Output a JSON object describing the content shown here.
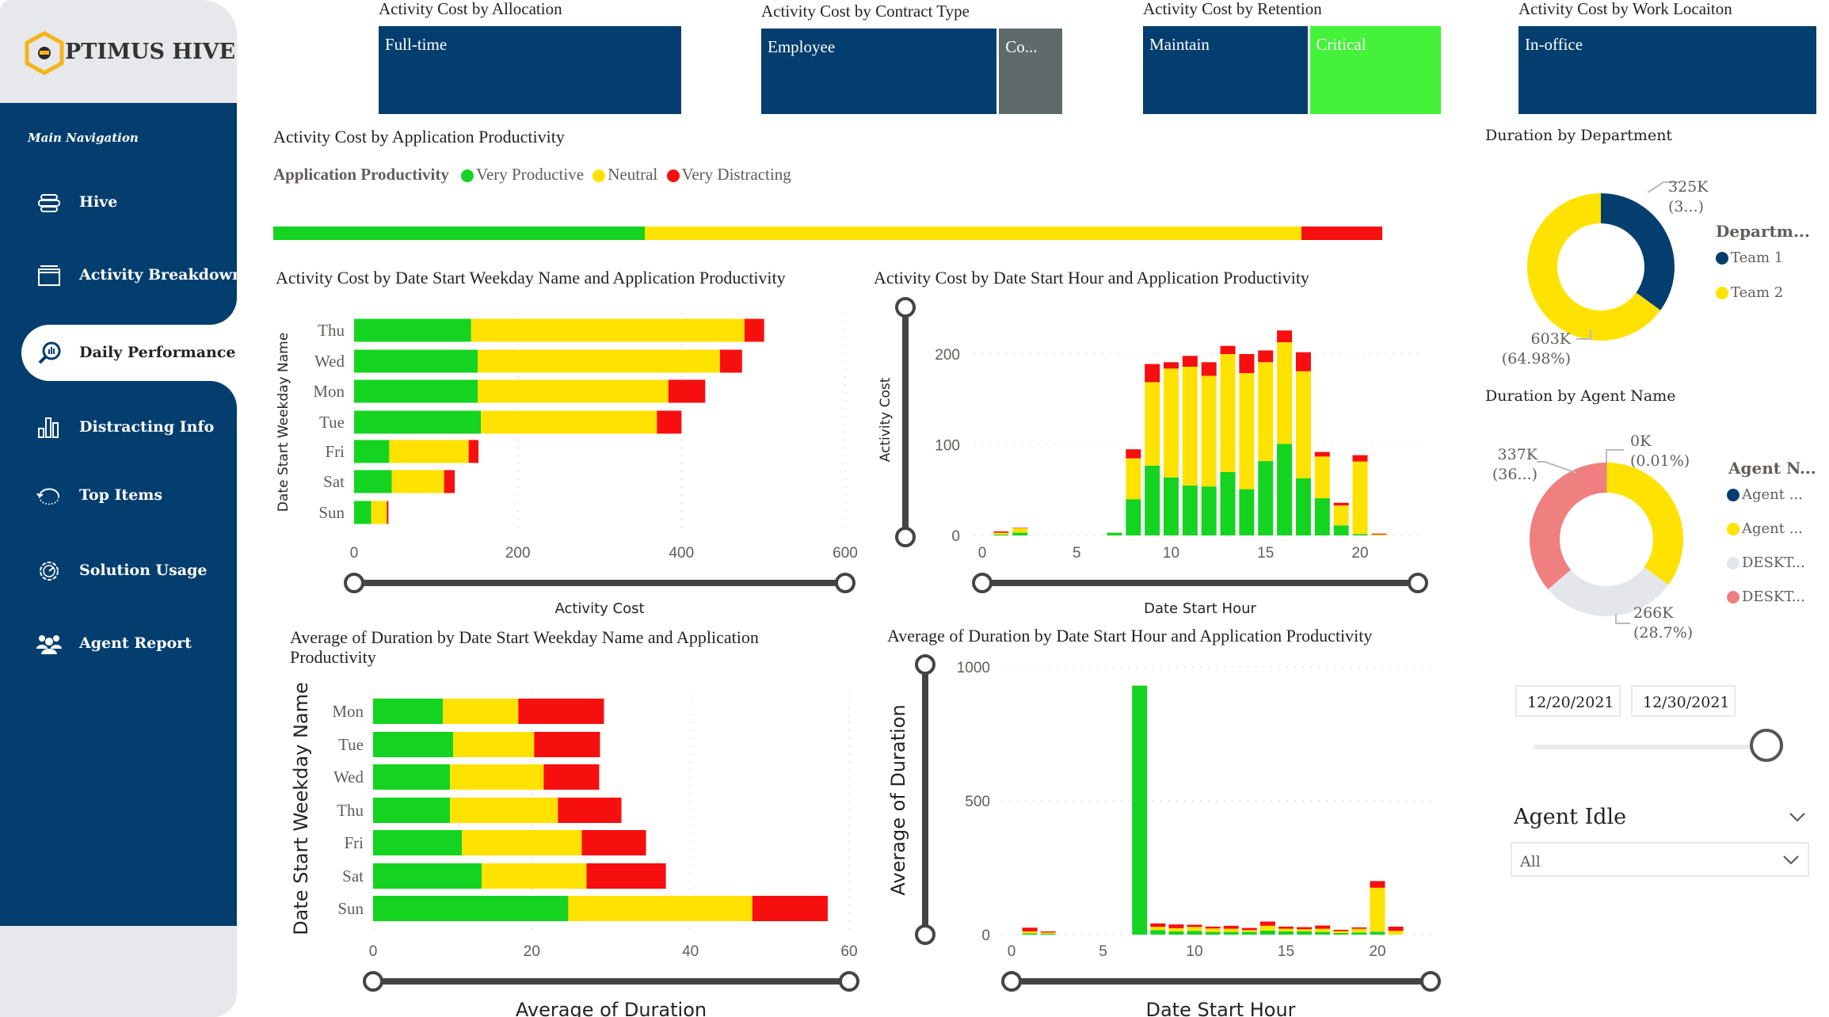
{
  "sidebar": {
    "logo_text": "PTIMUS HIVE",
    "section_title": "Main Navigation",
    "items": [
      {
        "label": "Hive",
        "icon": "hive-icon",
        "active": false
      },
      {
        "label": "Activity Breakdown",
        "icon": "window-icon",
        "active": false
      },
      {
        "label": "Daily Performance",
        "icon": "magnifier-chart-icon",
        "active": true
      },
      {
        "label": "Distracting Info",
        "icon": "bar-chart-icon",
        "active": false
      },
      {
        "label": "Top Items",
        "icon": "refresh-icon",
        "active": false
      },
      {
        "label": "Solution Usage",
        "icon": "gear-icon",
        "active": false
      },
      {
        "label": "Agent Report",
        "icon": "users-icon",
        "active": false
      }
    ]
  },
  "colors": {
    "navy": "#043E6F",
    "very_productive": "#15D321",
    "neutral": "#FFE200",
    "very_distracting": "#F70F0F",
    "contractor_grey": "#5F6A6A",
    "critical_green": "#44F23A",
    "team2_yellow": "#FFE200",
    "desktop_grey": "#E4E6E9",
    "desktop_red": "#F07F7F"
  },
  "tiles": [
    {
      "title": "Activity Cost by Allocation",
      "segments": [
        {
          "label": "Full-time",
          "share": 1.0,
          "color": "#043E6F"
        }
      ]
    },
    {
      "title": "Activity Cost by Contract Type",
      "segments": [
        {
          "label": "Employee",
          "share": 0.79,
          "color": "#043E6F"
        },
        {
          "label": "Co...",
          "share": 0.21,
          "color": "#5F6A6A"
        }
      ]
    },
    {
      "title": "Activity Cost by Retention",
      "segments": [
        {
          "label": "Maintain",
          "share": 0.56,
          "color": "#043E6F"
        },
        {
          "label": "Critical",
          "share": 0.44,
          "color": "#44F23A"
        }
      ]
    },
    {
      "title": "Activity Cost by Work Locaiton",
      "segments": [
        {
          "label": "In-office",
          "share": 1.0,
          "color": "#043E6F"
        }
      ]
    }
  ],
  "productivity": {
    "title": "Activity Cost by Application Productivity",
    "legend_title": "Application Productivity",
    "legend": [
      "Very Productive",
      "Neutral",
      "Very Distracting"
    ],
    "shares_percent": [
      33.5,
      59.2,
      7.3
    ]
  },
  "chart_data": [
    {
      "type": "bar",
      "orientation": "horizontal",
      "stacked": true,
      "title": "Activity Cost by Date Start Weekday Name and Application Productivity",
      "xlabel": "Activity Cost",
      "ylabel": "Date Start Weekday Name",
      "xlim": [
        0,
        600
      ],
      "xticks": [
        0,
        200,
        400,
        600
      ],
      "grid": true,
      "categories": [
        "Thu",
        "Wed",
        "Mon",
        "Tue",
        "Fri",
        "Sat",
        "Sun"
      ],
      "series": [
        {
          "name": "Very Productive",
          "values": [
            143,
            151,
            151,
            155,
            43,
            46,
            21
          ]
        },
        {
          "name": "Neutral",
          "values": [
            334,
            296,
            233,
            215,
            97,
            64,
            19
          ]
        },
        {
          "name": "Very Distracting",
          "values": [
            24,
            27,
            45,
            30,
            12,
            13,
            2
          ]
        }
      ]
    },
    {
      "type": "bar",
      "orientation": "vertical",
      "stacked": true,
      "title": "Activity Cost by Date Start Hour and Application Productivity",
      "xlabel": "Date Start Hour",
      "ylabel": "Activity Cost",
      "ylim": [
        0,
        230
      ],
      "yticks": [
        0,
        100,
        200
      ],
      "xticks": [
        0,
        5,
        10,
        15,
        20
      ],
      "grid": true,
      "x": [
        1,
        2,
        7,
        8,
        9,
        10,
        11,
        12,
        13,
        14,
        15,
        16,
        17,
        18,
        19,
        20,
        21
      ],
      "series": [
        {
          "name": "Very Productive",
          "values": [
            1,
            3,
            3,
            40,
            77,
            64,
            55,
            54,
            70,
            51,
            82,
            101,
            63,
            41,
            11,
            1.5,
            0
          ]
        },
        {
          "name": "Neutral",
          "values": [
            2,
            5,
            0,
            45,
            92,
            120,
            131,
            122,
            130,
            128,
            109,
            112,
            118,
            46,
            22,
            80,
            1
          ]
        },
        {
          "name": "Very Distracting",
          "values": [
            1.5,
            0.5,
            0,
            10,
            20,
            7,
            12,
            15,
            9,
            21,
            13,
            13,
            21,
            5,
            3,
            7,
            1
          ]
        }
      ]
    },
    {
      "type": "bar",
      "orientation": "horizontal",
      "stacked": true,
      "title": "Average of Duration by Date Start Weekday Name and Application Productivity",
      "xlabel": "Average of Duration",
      "ylabel": "Date Start Weekday Name",
      "xlim": [
        0,
        60
      ],
      "xticks": [
        0,
        20,
        40,
        60
      ],
      "grid": true,
      "categories": [
        "Mon",
        "Tue",
        "Wed",
        "Thu",
        "Fri",
        "Sat",
        "Sun"
      ],
      "series": [
        {
          "name": "Very Productive",
          "values": [
            8.8,
            10.1,
            9.7,
            9.7,
            11.2,
            13.7,
            24.6
          ]
        },
        {
          "name": "Neutral",
          "values": [
            9.5,
            10.2,
            11.8,
            13.6,
            15.1,
            13.2,
            23.2
          ]
        },
        {
          "name": "Very Distracting",
          "values": [
            10.8,
            8.3,
            7.0,
            8.0,
            8.1,
            10.0,
            9.5
          ]
        }
      ]
    },
    {
      "type": "bar",
      "orientation": "vertical",
      "stacked": true,
      "title": "Average of Duration by Date Start Hour and Application Productivity",
      "xlabel": "Date Start Hour",
      "ylabel": "Average of Duration",
      "ylim": [
        0,
        1000
      ],
      "yticks": [
        0,
        500,
        1000
      ],
      "xticks": [
        0,
        5,
        10,
        15,
        20
      ],
      "grid": true,
      "x": [
        1,
        2,
        7,
        8,
        9,
        10,
        11,
        12,
        13,
        14,
        15,
        16,
        17,
        18,
        19,
        20,
        21
      ],
      "series": [
        {
          "name": "Very Productive",
          "values": [
            5,
            3,
            930,
            17,
            12,
            14,
            10,
            10,
            10,
            15,
            12,
            12,
            10,
            6,
            8,
            11,
            0
          ]
        },
        {
          "name": "Neutral",
          "values": [
            7,
            5,
            0,
            12,
            12,
            15,
            13,
            12,
            7,
            18,
            10,
            8,
            12,
            7,
            14,
            164,
            14
          ]
        },
        {
          "name": "Very Distracting",
          "values": [
            14,
            4,
            0,
            13,
            14,
            8,
            7,
            11,
            8,
            16,
            8,
            8,
            12,
            5,
            5,
            25,
            16
          ]
        }
      ]
    },
    {
      "type": "pie",
      "donut": true,
      "title": "Duration by Department",
      "legend_title": "Departm...",
      "legend_position": "right",
      "slices": [
        {
          "name": "Team 1",
          "value_k": 325,
          "percent": 35.02,
          "color": "#043E6F",
          "label": "325K",
          "label_pct": "(3...)"
        },
        {
          "name": "Team 2",
          "value_k": 603,
          "percent": 64.98,
          "color": "#FFE200",
          "label": "603K",
          "label_pct": "(64.98%)"
        }
      ]
    },
    {
      "type": "pie",
      "donut": true,
      "title": "Duration by Agent Name",
      "legend_title": "Agent N...",
      "legend_position": "right",
      "slices": [
        {
          "name": "Agent ...",
          "value_k": 0.09,
          "percent": 0.01,
          "color": "#043E6F",
          "label": "0K",
          "label_pct": "(0.01%)"
        },
        {
          "name": "Agent ...",
          "value_k": 325,
          "percent": 35.0,
          "color": "#FFE200"
        },
        {
          "name": "DESKT...",
          "value_k": 266,
          "percent": 28.7,
          "color": "#E4E6E9",
          "label": "266K",
          "label_pct": "(28.7%)"
        },
        {
          "name": "DESKT...",
          "value_k": 337,
          "percent": 36.3,
          "color": "#F07F7F",
          "label": "337K",
          "label_pct": "(36...)"
        }
      ]
    }
  ],
  "date_slicer": {
    "start": "12/20/2021",
    "end": "12/30/2021",
    "position": 0.93
  },
  "agent_idle": {
    "title": "Agent Idle",
    "selected": "All"
  }
}
